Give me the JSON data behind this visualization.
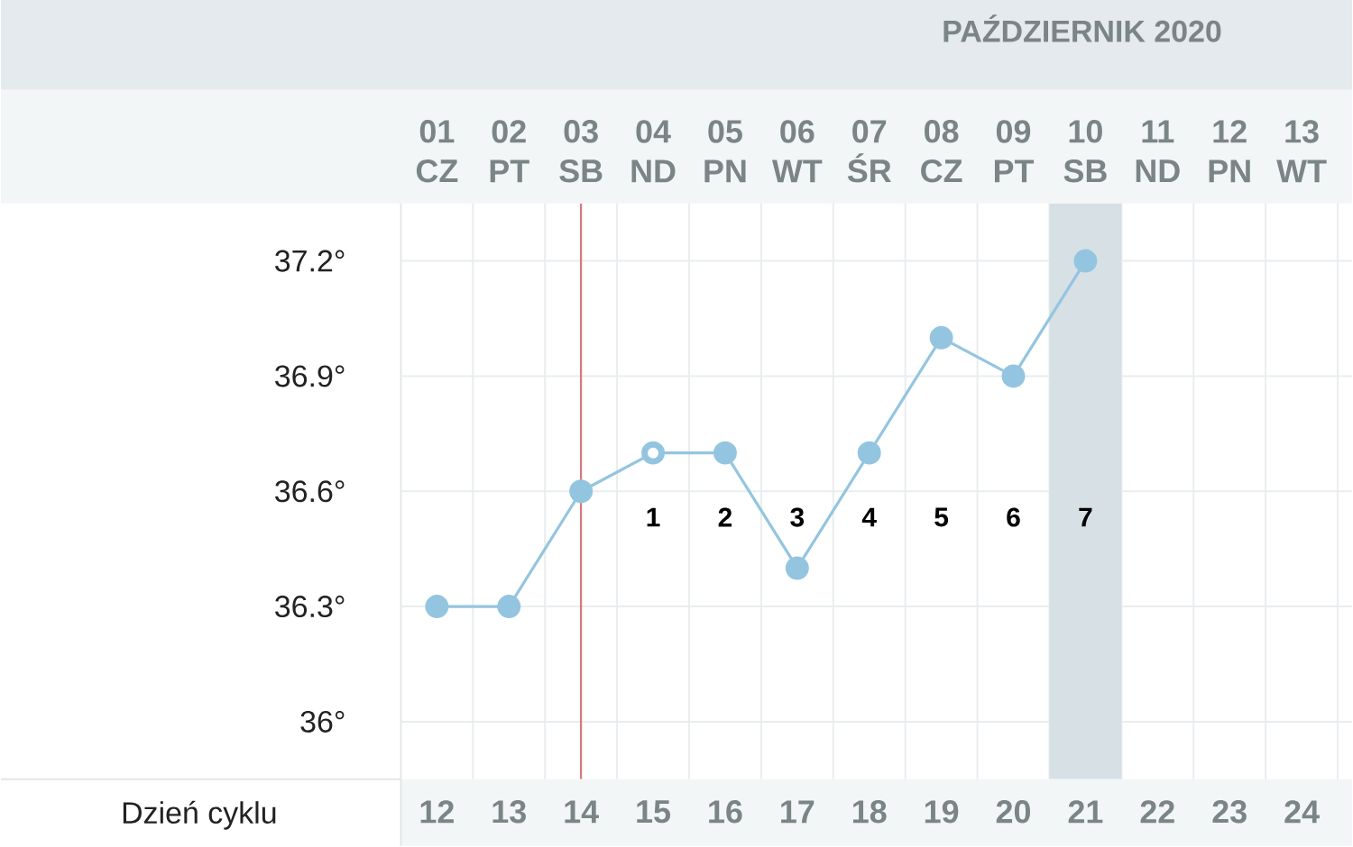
{
  "chart_data": {
    "type": "line",
    "title": "PAŹDZIERNIK 2020",
    "categories": [
      "01 CZ",
      "02 PT",
      "03 SB",
      "04 ND",
      "05 PN",
      "06 WT",
      "07 ŚR",
      "08 CZ",
      "09 PT",
      "10 SB",
      "11 ND",
      "12 PN",
      "13 WT"
    ],
    "series": [
      {
        "color": "#94c5e0",
        "colors": [
          "#94c5e0",
          "#94c5e0",
          "#94c5e0",
          "#ffffff",
          "#94c5e0",
          "#94c5e0",
          "#94c5e0",
          "#94c5e0",
          "#94c5e0",
          "#94c5e0",
          null,
          null,
          null
        ],
        "values": [
          36.3,
          36.3,
          36.6,
          36.7,
          36.7,
          36.4,
          36.7,
          37.0,
          36.9,
          37.2,
          null,
          null,
          null
        ]
      }
    ],
    "x2lim": [
      11.5,
      24.7
    ],
    "x2ticks": [
      12,
      13,
      14,
      15,
      16,
      17,
      18,
      19,
      20,
      21,
      22,
      23,
      24
    ],
    "x2label": "Dzień cyklu",
    "ylim": [
      35.85,
      37.35
    ],
    "yticks": [
      {
        "value": 36,
        "label": "36°"
      },
      {
        "value": 36.3,
        "label": "36.3°"
      },
      {
        "value": 36.6,
        "label": "36.6°"
      },
      {
        "value": 36.9,
        "label": "36.9°"
      },
      {
        "value": 37.2,
        "label": "37.2°"
      }
    ],
    "grid": true,
    "marker": "circle",
    "line_style": "solid",
    "annotations": [
      "1",
      "2",
      "3",
      "4",
      "5",
      "6",
      "7"
    ],
    "ref_lines": [
      {
        "axis": "x",
        "value": "03 SB",
        "color": "#d9787c"
      }
    ],
    "bands": [
      {
        "axis": "x",
        "from": "10 SB",
        "to": "10 SB",
        "color": "#d7e0e5"
      }
    ]
  }
}
